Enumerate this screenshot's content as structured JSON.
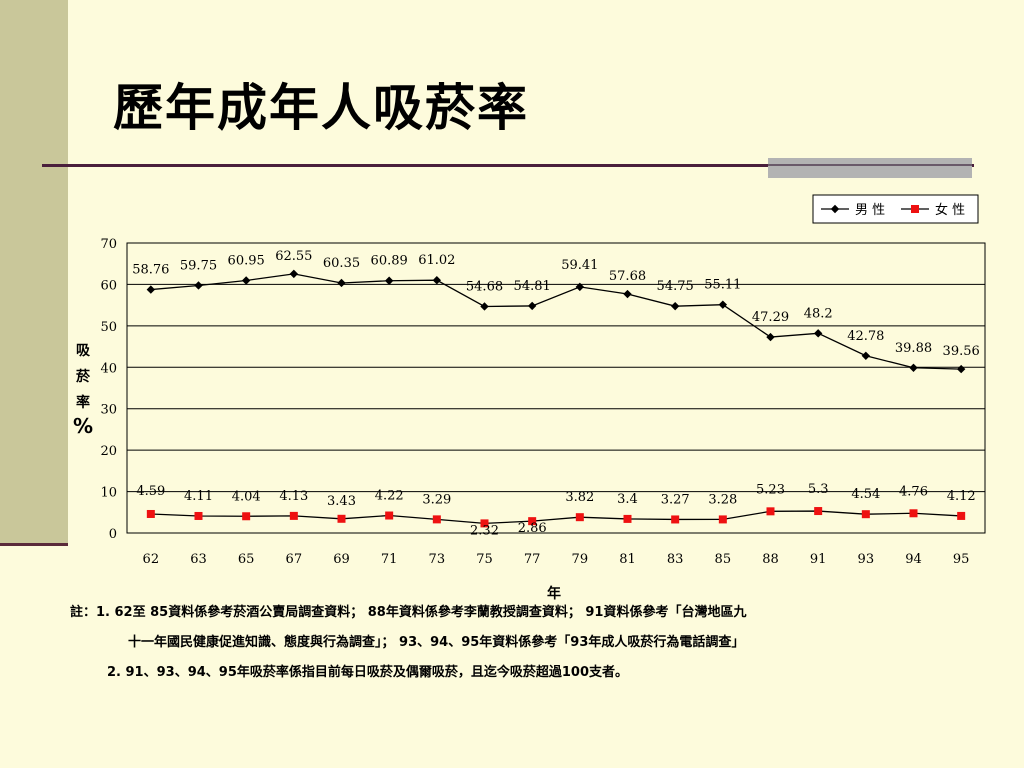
{
  "page": {
    "title": "歷年成年人吸菸率"
  },
  "chart_data": {
    "type": "line",
    "title": "",
    "xlabel": "年",
    "ylabel": "吸菸率%",
    "ylabel_chars": [
      "吸",
      "菸",
      "率",
      "%"
    ],
    "ylim": [
      0,
      70
    ],
    "yticks": [
      0,
      10,
      20,
      30,
      40,
      50,
      60,
      70
    ],
    "grid": "horizontal",
    "legend": "top-right",
    "categories": [
      "62",
      "63",
      "65",
      "67",
      "69",
      "71",
      "73",
      "75",
      "77",
      "79",
      "81",
      "83",
      "85",
      "88",
      "91",
      "93",
      "94",
      "95"
    ],
    "series": [
      {
        "name": "男性",
        "legend_label": "男 性",
        "color": "#000000",
        "marker": "diamond",
        "values": [
          58.76,
          59.75,
          60.95,
          62.55,
          60.35,
          60.89,
          61.02,
          54.68,
          54.81,
          59.41,
          57.68,
          54.75,
          55.11,
          47.29,
          48.2,
          42.78,
          39.88,
          39.56
        ],
        "labels": [
          "58.76",
          "59.75",
          "60.95",
          "62.55",
          "60.35",
          "60.89",
          "61.02",
          "54.68",
          "54.81",
          "59.41",
          "57.68",
          "54.75",
          "55.11",
          "47.29",
          "48.2",
          "42.78",
          "39.88",
          "39.56"
        ]
      },
      {
        "name": "女性",
        "legend_label": "女 性",
        "color": "#ee1111",
        "marker": "square",
        "values": [
          4.59,
          4.11,
          4.04,
          4.13,
          3.43,
          4.22,
          3.29,
          2.32,
          2.86,
          3.82,
          3.4,
          3.27,
          3.28,
          5.23,
          5.3,
          4.54,
          4.76,
          4.12
        ],
        "labels": [
          "4.59",
          "4.11",
          "4.04",
          "4.13",
          "3.43",
          "4.22",
          "3.29",
          "2.32",
          "2.86",
          "3.82",
          "3.4",
          "3.27",
          "3.28",
          "5.23",
          "5.3",
          "4.54",
          "4.76",
          "4.12"
        ]
      }
    ]
  },
  "notes": {
    "line1": "註：1. 62至 85資料係參考菸酒公賣局調查資料； 88年資料係參考李蘭教授調查資料； 91資料係參考「台灣地區九",
    "line2": "十一年國民健康促進知識、態度與行為調查」； 93、94、95年資料係參考「93年成人吸菸行為電話調查」",
    "line3": "2. 91、93、94、95年吸菸率係指目前每日吸菸及偶爾吸菸，且迄今吸菸超過100支者。"
  }
}
